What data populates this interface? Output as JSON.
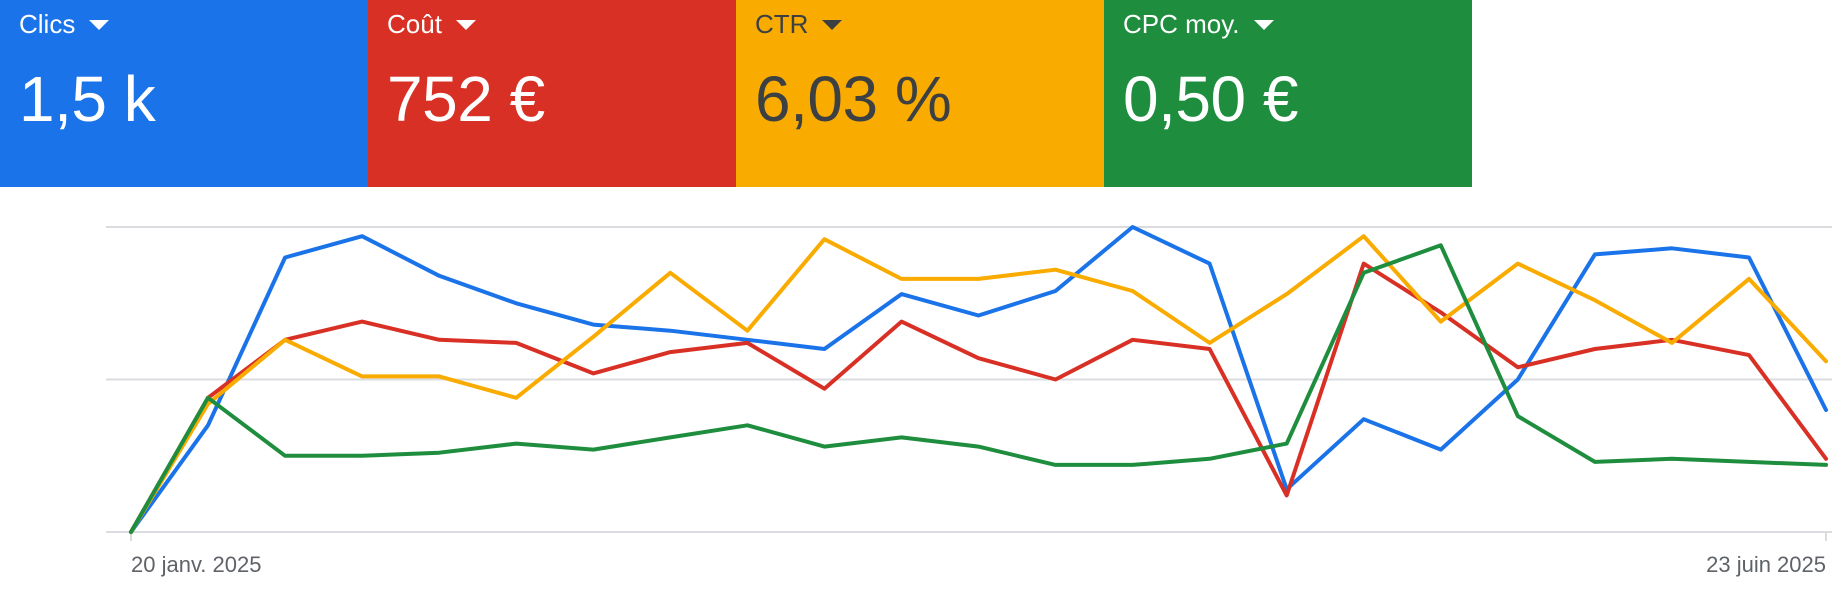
{
  "metrics": [
    {
      "label": "Clics",
      "value": "1,5 k",
      "bg": "#1a73e8",
      "fg": "#ffffff"
    },
    {
      "label": "Coût",
      "value": "752 €",
      "bg": "#d93025",
      "fg": "#ffffff"
    },
    {
      "label": "CTR",
      "value": "6,03 %",
      "bg": "#f9ab00",
      "fg": "#3c4043"
    },
    {
      "label": "CPC moy.",
      "value": "0,50 €",
      "bg": "#1e8e3e",
      "fg": "#ffffff"
    }
  ],
  "chart_data": {
    "type": "line",
    "x_tick_labels": [
      "20 janv. 2025",
      "23 juin 2025"
    ],
    "ylim": [
      0,
      100
    ],
    "grid": true,
    "series": [
      {
        "color": "#1a73e8",
        "values": [
          0,
          35,
          90,
          97,
          84,
          75,
          68,
          66,
          63,
          60,
          78,
          71,
          79,
          100,
          88,
          14,
          37,
          27,
          50,
          91,
          93,
          90,
          40
        ]
      },
      {
        "color": "#d93025",
        "values": [
          0,
          44,
          63,
          69,
          63,
          62,
          52,
          59,
          62,
          47,
          69,
          57,
          50,
          63,
          60,
          12,
          88,
          72,
          54,
          60,
          63,
          58,
          24
        ]
      },
      {
        "color": "#f9ab00",
        "values": [
          0,
          42,
          63,
          51,
          51,
          44,
          64,
          85,
          66,
          96,
          83,
          83,
          86,
          79,
          62,
          78,
          97,
          69,
          88,
          76,
          62,
          83,
          56
        ]
      },
      {
        "color": "#1e8e3e",
        "values": [
          0,
          44,
          25,
          25,
          26,
          29,
          27,
          31,
          35,
          28,
          31,
          28,
          22,
          22,
          24,
          29,
          85,
          94,
          38,
          23,
          24,
          23,
          22
        ]
      }
    ]
  }
}
